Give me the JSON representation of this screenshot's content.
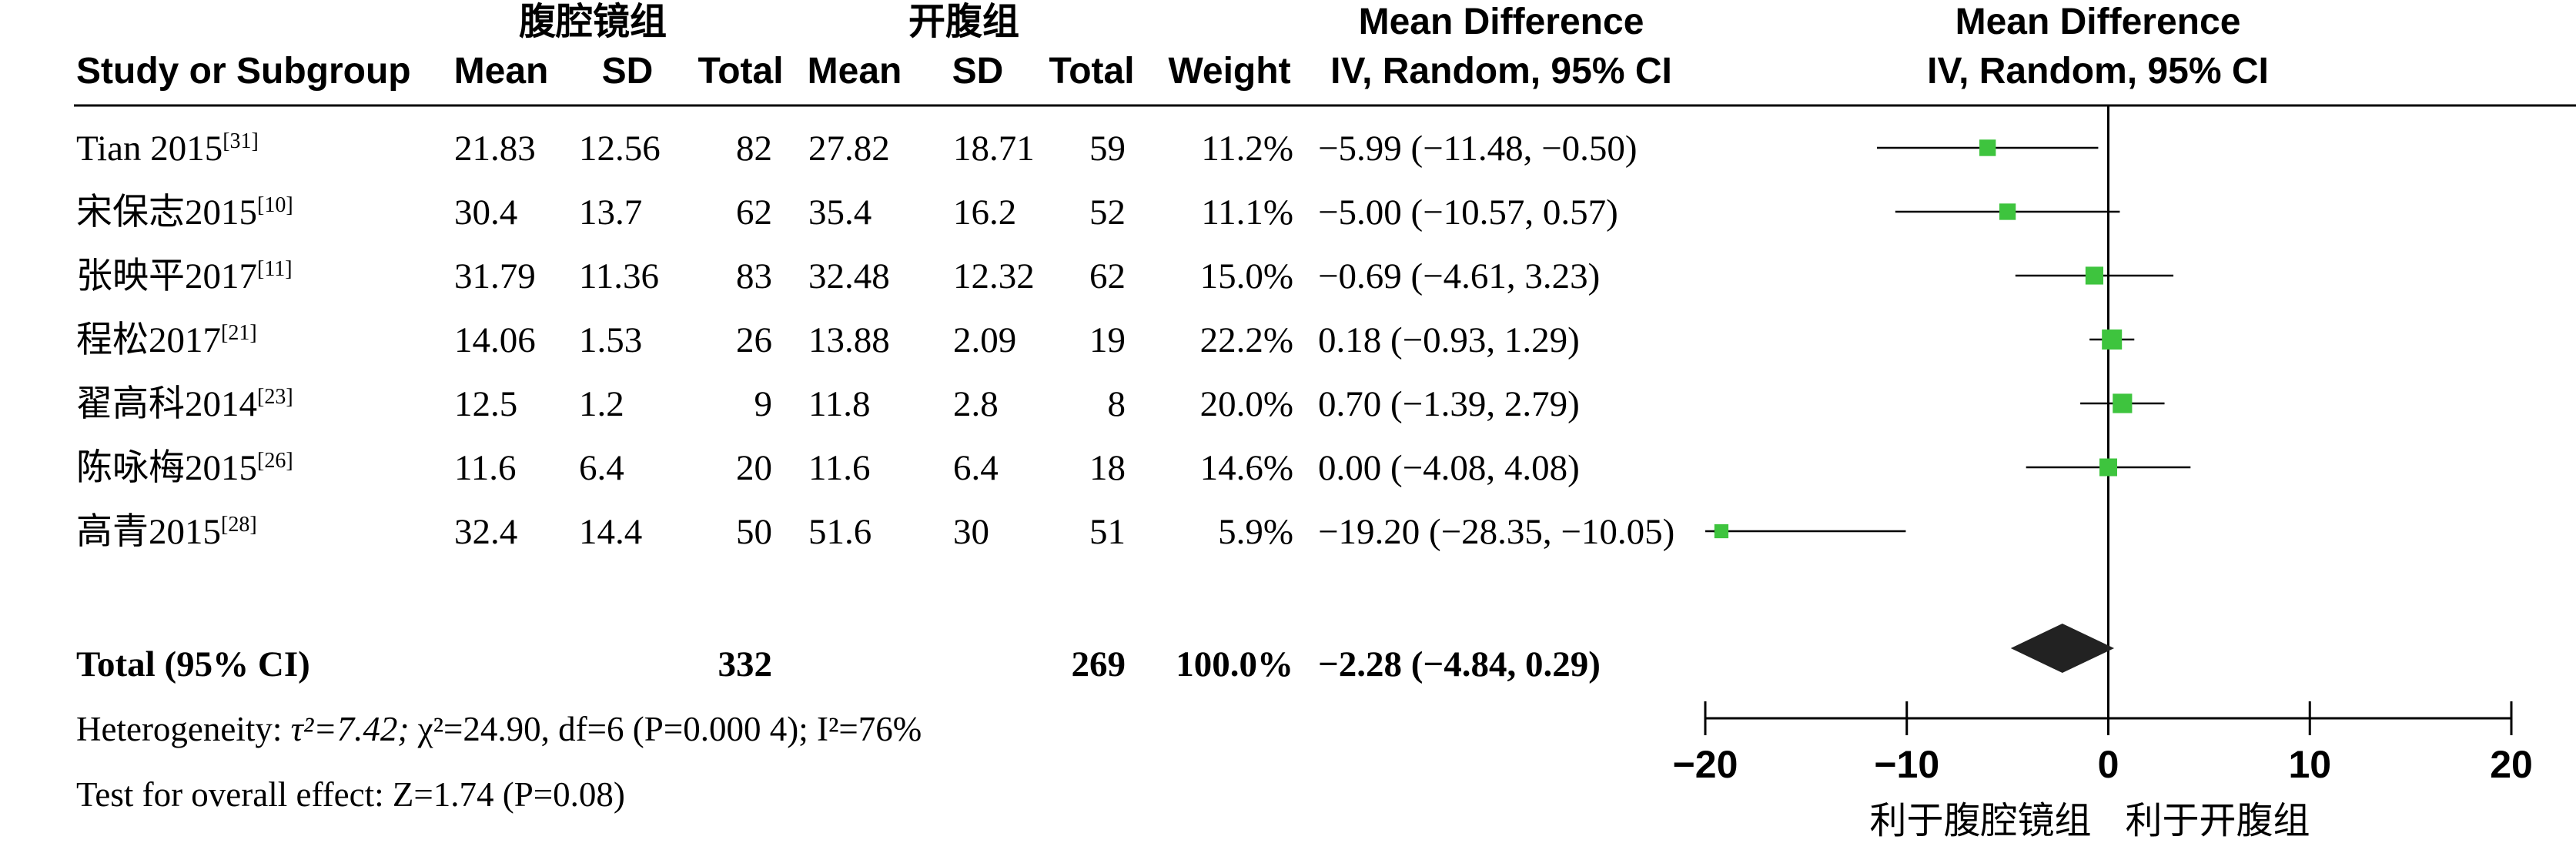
{
  "headers": {
    "group1": "腹腔镜组",
    "group2": "开腹组",
    "study": "Study or Subgroup",
    "mean": "Mean",
    "sd": "SD",
    "total": "Total",
    "weight": "Weight",
    "md_title": "Mean Difference",
    "md_method": "IV, Random, 95% CI"
  },
  "chart_data": {
    "type": "forest",
    "xlim": [
      -20,
      20
    ],
    "xticks": [
      -20,
      -10,
      0,
      10,
      20
    ],
    "xlabel_left": "利于腹腔镜组",
    "xlabel_right": "利于开腹组",
    "studies": [
      {
        "name": "Tian 2015",
        "ref": "[31]",
        "m1": "21.83",
        "sd1": "12.56",
        "n1": "82",
        "m2": "27.82",
        "sd2": "18.71",
        "n2": "59",
        "weight": "11.2%",
        "ci_text": "−5.99 (−11.48, −0.50)",
        "md": -5.99,
        "lo": -11.48,
        "hi": -0.5,
        "w": 11.2
      },
      {
        "name": "宋保志2015",
        "ref": "[10]",
        "m1": "30.4",
        "sd1": "13.7",
        "n1": "62",
        "m2": "35.4",
        "sd2": "16.2",
        "n2": "52",
        "weight": "11.1%",
        "ci_text": "−5.00 (−10.57, 0.57)",
        "md": -5.0,
        "lo": -10.57,
        "hi": 0.57,
        "w": 11.1
      },
      {
        "name": "张映平2017",
        "ref": "[11]",
        "m1": "31.79",
        "sd1": "11.36",
        "n1": "83",
        "m2": "32.48",
        "sd2": "12.32",
        "n2": "62",
        "weight": "15.0%",
        "ci_text": "−0.69 (−4.61, 3.23)",
        "md": -0.69,
        "lo": -4.61,
        "hi": 3.23,
        "w": 15.0
      },
      {
        "name": "程松2017",
        "ref": "[21]",
        "m1": "14.06",
        "sd1": "1.53",
        "n1": "26",
        "m2": "13.88",
        "sd2": "2.09",
        "n2": "19",
        "weight": "22.2%",
        "ci_text": "0.18 (−0.93, 1.29)",
        "md": 0.18,
        "lo": -0.93,
        "hi": 1.29,
        "w": 22.2
      },
      {
        "name": "翟高科2014",
        "ref": "[23]",
        "m1": "12.5",
        "sd1": "1.2",
        "n1": "9",
        "m2": "11.8",
        "sd2": "2.8",
        "n2": "8",
        "weight": "20.0%",
        "ci_text": "0.70 (−1.39, 2.79)",
        "md": 0.7,
        "lo": -1.39,
        "hi": 2.79,
        "w": 20.0
      },
      {
        "name": "陈咏梅2015",
        "ref": "[26]",
        "m1": "11.6",
        "sd1": "6.4",
        "n1": "20",
        "m2": "11.6",
        "sd2": "6.4",
        "n2": "18",
        "weight": "14.6%",
        "ci_text": "0.00 (−4.08, 4.08)",
        "md": 0.0,
        "lo": -4.08,
        "hi": 4.08,
        "w": 14.6
      },
      {
        "name": "高青2015",
        "ref": "[28]",
        "m1": "32.4",
        "sd1": "14.4",
        "n1": "50",
        "m2": "51.6",
        "sd2": "30",
        "n2": "51",
        "weight": "5.9%",
        "ci_text": "−19.20 (−28.35, −10.05)",
        "md": -19.2,
        "lo": -28.35,
        "hi": -10.05,
        "w": 5.9
      }
    ],
    "total": {
      "label": "Total (95% CI)",
      "n1": "332",
      "n2": "269",
      "weight": "100.0%",
      "ci_text": "−2.28 (−4.84, 0.29)",
      "md": -2.28,
      "lo": -4.84,
      "hi": 0.29
    }
  },
  "footer": {
    "het_label": "Heterogeneity: ",
    "tau2": "τ²=7.42; ",
    "chi2": "χ²=24.90, df=6 (",
    "p1": "P=0.000 4); ",
    "i2": "I²=76%",
    "overall_label": "Test for overall effect: ",
    "z": "Z=1.74 (",
    "p2": "P=0.08)"
  },
  "colors": {
    "marker": "#3ec43e",
    "diamond": "#222222",
    "line": "#000000"
  }
}
